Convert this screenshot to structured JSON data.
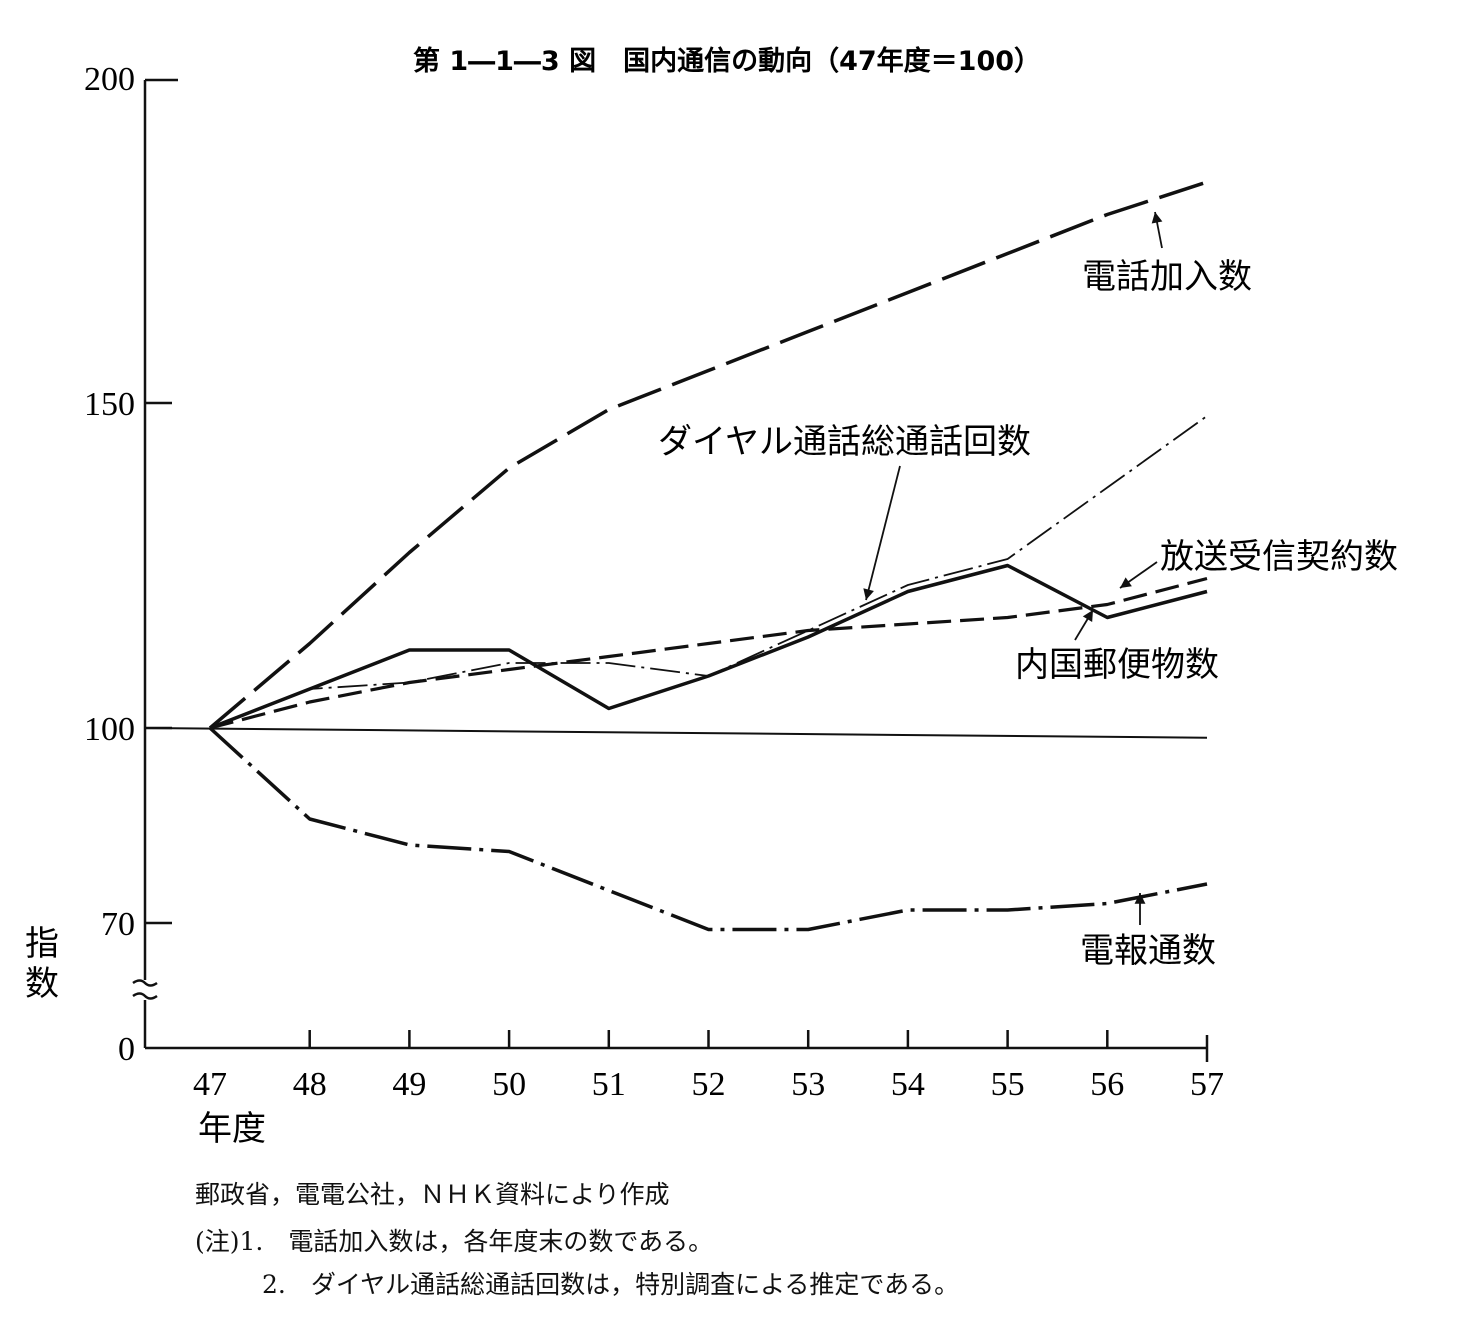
{
  "chart_data": {
    "type": "line",
    "title": "第 1―1―3 図　国内通信の動向（47年度＝100）",
    "xlabel": "年度",
    "ylabel": "指数",
    "categories": [
      "47",
      "48",
      "49",
      "50",
      "51",
      "52",
      "53",
      "54",
      "55",
      "56",
      "57"
    ],
    "y_ticks": [
      "200",
      "150",
      "100",
      "70",
      "0"
    ],
    "axis_break": "70と0の間で中断",
    "baseline": 100,
    "series": [
      {
        "name": "電話加入数",
        "style": "long-dash",
        "values": [
          100,
          113,
          127,
          140,
          149,
          155,
          161,
          167,
          173,
          179,
          184
        ]
      },
      {
        "name": "ダイヤル通話総通話回数",
        "style": "dash-dot",
        "values": [
          100,
          106,
          107,
          110,
          110,
          108,
          115,
          122,
          126,
          137,
          148
        ]
      },
      {
        "name": "放送受信契約数",
        "style": "dash",
        "values": [
          100,
          104,
          107,
          109,
          111,
          113,
          115,
          116,
          117,
          119,
          123
        ]
      },
      {
        "name": "内国郵便物数",
        "style": "solid-bold",
        "values": [
          100,
          106,
          112,
          112,
          103,
          108,
          114,
          121,
          125,
          117,
          121
        ]
      },
      {
        "name": "電報通数",
        "style": "dash-dot-dot",
        "values": [
          100,
          86,
          82,
          81,
          75,
          69,
          69,
          72,
          72,
          73,
          76
        ]
      }
    ],
    "reference_line_end_value": 98.5
  },
  "notes": {
    "source": "郵政省，電電公社，ＮＨＫ資料により作成",
    "note1": "(注)1.　電話加入数は，各年度末の数である。",
    "note2": "2.　ダイヤル通話総通話回数は，特別調査による推定である。"
  }
}
